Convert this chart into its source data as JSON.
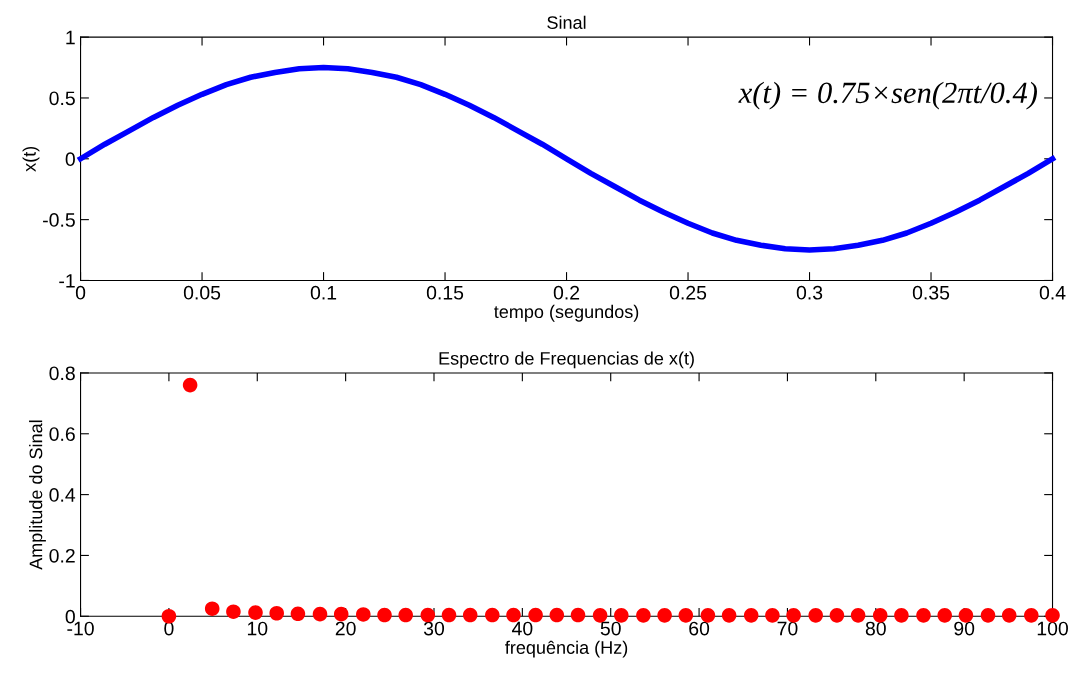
{
  "chart_data": [
    {
      "type": "line",
      "title": "Sinal",
      "xlabel": "tempo (segundos)",
      "ylabel": "x(t)",
      "annotations": [
        "x(t) = 0.75×sen(2πt/0.4)"
      ],
      "x": [
        0,
        0.01,
        0.02,
        0.03,
        0.04,
        0.05,
        0.06,
        0.07,
        0.08,
        0.09,
        0.1,
        0.11,
        0.12,
        0.13,
        0.14,
        0.15,
        0.16,
        0.17,
        0.18,
        0.19,
        0.2,
        0.21,
        0.22,
        0.23,
        0.24,
        0.25,
        0.26,
        0.27,
        0.28,
        0.29,
        0.3,
        0.31,
        0.32,
        0.33,
        0.34,
        0.35,
        0.36,
        0.37,
        0.38,
        0.39,
        0.4
      ],
      "series": [
        {
          "color": "#0000ff",
          "values": [
            0,
            0.12,
            0.23,
            0.34,
            0.44,
            0.53,
            0.61,
            0.67,
            0.71,
            0.74,
            0.75,
            0.74,
            0.71,
            0.67,
            0.61,
            0.53,
            0.44,
            0.34,
            0.23,
            0.12,
            0,
            -0.12,
            -0.23,
            -0.34,
            -0.44,
            -0.53,
            -0.61,
            -0.67,
            -0.71,
            -0.74,
            -0.75,
            -0.74,
            -0.71,
            -0.67,
            -0.61,
            -0.53,
            -0.44,
            -0.34,
            -0.23,
            -0.12,
            0
          ]
        }
      ],
      "xlim": [
        0,
        0.4
      ],
      "xticks": [
        0,
        0.05,
        0.1,
        0.15,
        0.2,
        0.25,
        0.3,
        0.35,
        0.4
      ],
      "ylim": [
        -1,
        1
      ],
      "yticks": [
        -1,
        -0.5,
        0,
        0.5,
        1
      ],
      "marker": "none",
      "line_style": "solid",
      "grid": false,
      "legend": false
    },
    {
      "type": "scatter",
      "title": "Espectro de Frequencias de x(t)",
      "xlabel": "frequência (Hz)",
      "ylabel": "Amplitude do Sinal",
      "x": [
        0,
        2.4,
        4.9,
        7.3,
        9.8,
        12.2,
        14.6,
        17.1,
        19.5,
        22,
        24.4,
        26.8,
        29.3,
        31.7,
        34.1,
        36.6,
        39,
        41.5,
        43.9,
        46.3,
        48.8,
        51.2,
        53.7,
        56.1,
        58.5,
        61,
        63.4,
        65.9,
        68.3,
        70.7,
        73.2,
        75.6,
        78,
        80.5,
        82.9,
        85.4,
        87.8,
        90.2,
        92.7,
        95.1,
        97.6,
        100
      ],
      "series": [
        {
          "color": "#ff0000",
          "values": [
            0,
            0.76,
            0.025,
            0.015,
            0.012,
            0.01,
            0.008,
            0.007,
            0.007,
            0.006,
            0.004,
            0.004,
            0.004,
            0.004,
            0.004,
            0.004,
            0.004,
            0.004,
            0.004,
            0.004,
            0.003,
            0.003,
            0.003,
            0.003,
            0.003,
            0.003,
            0.003,
            0.003,
            0.003,
            0.003,
            0.003,
            0.003,
            0.003,
            0.003,
            0.003,
            0.003,
            0.003,
            0.003,
            0.003,
            0.003,
            0.003,
            0.003
          ]
        }
      ],
      "xlim": [
        -10,
        100
      ],
      "xticks": [
        -10,
        0,
        10,
        20,
        30,
        40,
        50,
        60,
        70,
        80,
        90,
        100
      ],
      "ylim": [
        0,
        0.8
      ],
      "yticks": [
        0,
        0.2,
        0.4,
        0.6,
        0.8
      ],
      "marker": "circle",
      "grid": false,
      "legend": false
    }
  ]
}
